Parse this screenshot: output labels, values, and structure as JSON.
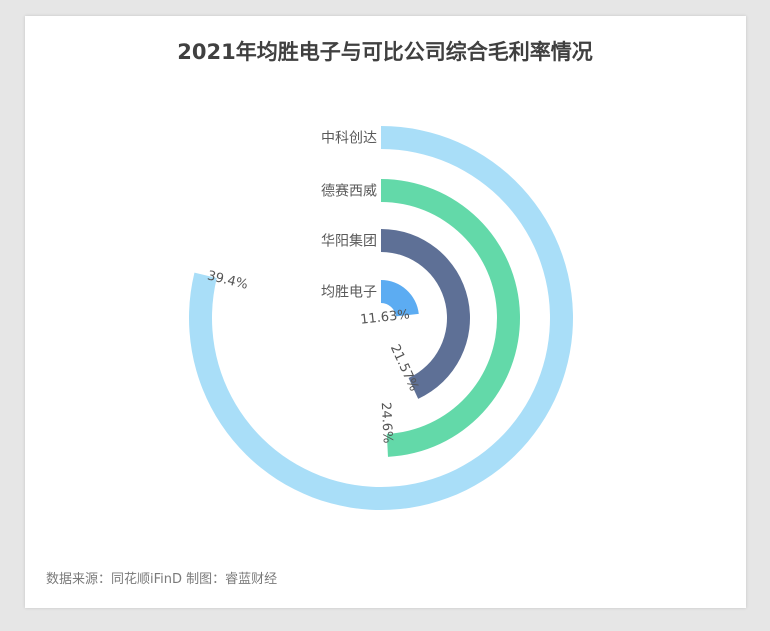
{
  "title": "2021年均胜电子与可比公司综合毛利率情况",
  "source": "数据来源：同花顺iFinD 制图：睿蓝财经",
  "chart_data": {
    "type": "radial-bar",
    "title": "2021年均胜电子与可比公司综合毛利率情况",
    "unit": "%",
    "series": [
      {
        "name": "中科创达",
        "value": 39.4,
        "value_label": "39.4%",
        "color": "#a9def8"
      },
      {
        "name": "德赛西威",
        "value": 24.6,
        "value_label": "24.6%",
        "color": "#63d9a9"
      },
      {
        "name": "华阳集团",
        "value": 21.57,
        "value_label": "21.57%",
        "color": "#5e7096"
      },
      {
        "name": "均胜电子",
        "value": 11.63,
        "value_label": "11.63%",
        "color": "#5cacf2"
      }
    ],
    "max_value": 50
  }
}
